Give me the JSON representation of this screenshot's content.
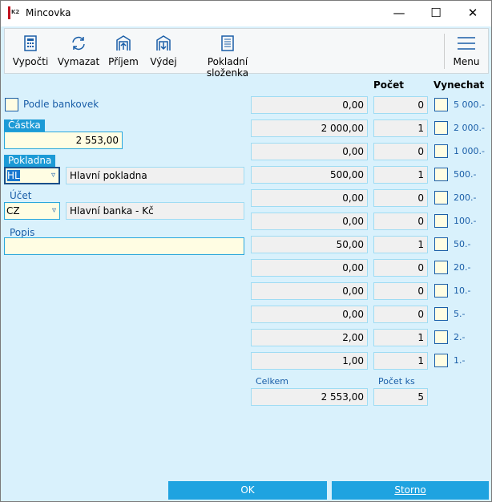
{
  "window": {
    "title": "Mincovka",
    "min": "—",
    "max": "☐",
    "close": "✕"
  },
  "toolbar": [
    {
      "label": "Vypočti",
      "icon": "calculator-icon"
    },
    {
      "label": "Vymazat",
      "icon": "refresh-icon"
    },
    {
      "label": "Příjem",
      "icon": "income-icon"
    },
    {
      "label": "Výdej",
      "icon": "expense-icon"
    },
    {
      "label": "Pokladní složenka",
      "icon": "document-icon"
    },
    {
      "label": "Menu",
      "icon": "hamburger-icon"
    }
  ],
  "form": {
    "podle_bankovek": "Podle bankovek",
    "castka_label": "Částka",
    "castka": "2 553,00",
    "pokladna_label": "Pokladna",
    "pokladna_code": "HL",
    "pokladna_name": "Hlavní pokladna",
    "ucet_label": "Účet",
    "ucet_code": "CZ",
    "ucet_name": "Hlavní banka - Kč",
    "popis_label": "Popis",
    "popis": ""
  },
  "table": {
    "count_header": "Počet",
    "skip_header": "Vynechat",
    "rows": [
      {
        "amount": "0,00",
        "count": "0",
        "denom": "5 000.-"
      },
      {
        "amount": "2 000,00",
        "count": "1",
        "denom": "2 000.-"
      },
      {
        "amount": "0,00",
        "count": "0",
        "denom": "1 000.-"
      },
      {
        "amount": "500,00",
        "count": "1",
        "denom": "500.-"
      },
      {
        "amount": "0,00",
        "count": "0",
        "denom": "200.-"
      },
      {
        "amount": "0,00",
        "count": "0",
        "denom": "100.-"
      },
      {
        "amount": "50,00",
        "count": "1",
        "denom": "50.-"
      },
      {
        "amount": "0,00",
        "count": "0",
        "denom": "20.-"
      },
      {
        "amount": "0,00",
        "count": "0",
        "denom": "10.-"
      },
      {
        "amount": "0,00",
        "count": "0",
        "denom": "5.-"
      },
      {
        "amount": "2,00",
        "count": "1",
        "denom": "2.-"
      },
      {
        "amount": "1,00",
        "count": "1",
        "denom": "1.-"
      }
    ],
    "total_label": "Celkem",
    "total": "2 553,00",
    "total_count_label": "Počet ks",
    "total_count": "5"
  },
  "buttons": {
    "ok": "OK",
    "storno": "Storno"
  },
  "colors": {
    "accent": "#1fa3e0",
    "label": "#1a5ea8",
    "input_bg": "#fffde3"
  }
}
